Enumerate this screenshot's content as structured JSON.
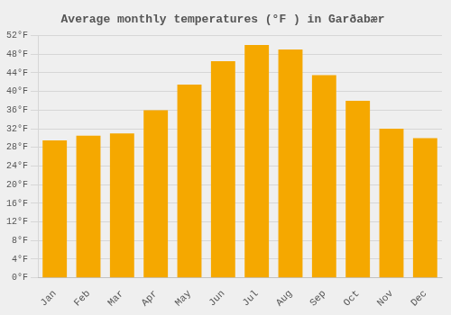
{
  "chart_data": {
    "type": "bar",
    "title": "Average monthly temperatures (°F ) in Garðabær",
    "categories": [
      "Jan",
      "Feb",
      "Mar",
      "Apr",
      "May",
      "Jun",
      "Jul",
      "Aug",
      "Sep",
      "Oct",
      "Nov",
      "Dec"
    ],
    "values": [
      29.5,
      30.5,
      31.0,
      36.0,
      41.5,
      46.5,
      50.0,
      49.0,
      43.5,
      38.0,
      32.0,
      30.0
    ],
    "color": "#F5A800",
    "ylim": [
      0,
      52
    ],
    "yticks": [
      {
        "value": 0,
        "label": "0°F"
      },
      {
        "value": 4,
        "label": "4°F"
      },
      {
        "value": 8,
        "label": "8°F"
      },
      {
        "value": 12,
        "label": "12°F"
      },
      {
        "value": 16,
        "label": "16°F"
      },
      {
        "value": 20,
        "label": "20°F"
      },
      {
        "value": 24,
        "label": "24°F"
      },
      {
        "value": 28,
        "label": "28°F"
      },
      {
        "value": 32,
        "label": "32°F"
      },
      {
        "value": 36,
        "label": "36°F"
      },
      {
        "value": 40,
        "label": "40°F"
      },
      {
        "value": 44,
        "label": "44°F"
      },
      {
        "value": 48,
        "label": "48°F"
      },
      {
        "value": 52,
        "label": "52°F"
      }
    ],
    "grid": true
  }
}
